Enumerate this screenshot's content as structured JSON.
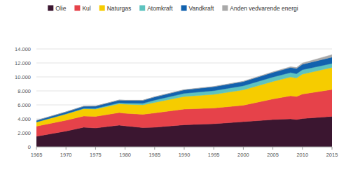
{
  "chart_data": {
    "type": "area",
    "stacked": true,
    "grid": true,
    "legend": "top",
    "x": [
      1965,
      1970,
      1973,
      1975,
      1979,
      1980,
      1983,
      1985,
      1990,
      1995,
      2000,
      2005,
      2008,
      2009,
      2010,
      2015
    ],
    "xlim": [
      1965,
      2015
    ],
    "xticks": [
      1965,
      1970,
      1975,
      1980,
      1985,
      1990,
      1995,
      2000,
      2005,
      2010,
      2015
    ],
    "ylim": [
      0,
      14000
    ],
    "yticks": [
      0,
      {
        "value": 2000,
        "label": "2.000"
      },
      {
        "value": 4000,
        "label": "4.000"
      },
      {
        "value": 6000,
        "label": "6.000"
      },
      {
        "value": 8000,
        "label": "8.000"
      },
      {
        "value": 10000,
        "label": "10.000"
      },
      {
        "value": 12000,
        "label": "12.000"
      },
      {
        "value": 14000,
        "label": "14.000"
      }
    ],
    "series": [
      {
        "name": "Olie",
        "color": "#3b1630",
        "values": [
          1500,
          2250,
          2800,
          2700,
          3100,
          3000,
          2750,
          2800,
          3150,
          3300,
          3600,
          3900,
          4000,
          3900,
          4050,
          4350
        ]
      },
      {
        "name": "Kul",
        "color": "#e6424a",
        "values": [
          1450,
          1550,
          1600,
          1650,
          1800,
          1800,
          1900,
          2050,
          2250,
          2250,
          2350,
          2950,
          3300,
          3300,
          3500,
          3850
        ]
      },
      {
        "name": "Naturgas",
        "color": "#f6cc00",
        "values": [
          600,
          900,
          1050,
          1050,
          1250,
          1300,
          1350,
          1500,
          1800,
          1950,
          2200,
          2500,
          2700,
          2650,
          2850,
          3150
        ]
      },
      {
        "name": "Atomkraft",
        "color": "#5ec3bf",
        "values": [
          5,
          20,
          50,
          90,
          150,
          160,
          220,
          330,
          450,
          530,
          580,
          630,
          620,
          610,
          630,
          580
        ]
      },
      {
        "name": "Vandkraft",
        "color": "#1262ae",
        "values": [
          210,
          270,
          300,
          330,
          380,
          390,
          420,
          450,
          490,
          560,
          600,
          660,
          720,
          740,
          780,
          890
        ]
      },
      {
        "name": "Anden vedvarende energi",
        "color": "#a9a9a9",
        "values": [
          5,
          10,
          12,
          15,
          20,
          20,
          25,
          30,
          40,
          45,
          55,
          80,
          120,
          140,
          170,
          360
        ]
      }
    ]
  }
}
